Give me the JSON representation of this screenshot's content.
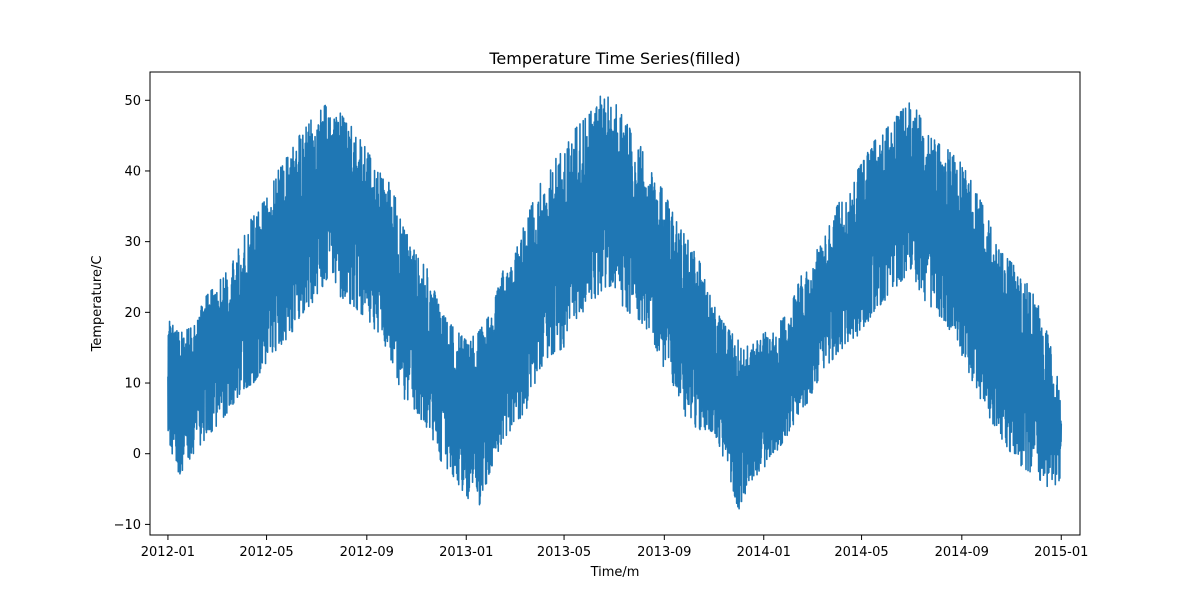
{
  "chart_data": {
    "type": "line",
    "title": "Temperature Time Series(filled)",
    "xlabel": "Time/m",
    "ylabel": "Temperature/C",
    "xlim": [
      "2011-12-10",
      "2015-01-24"
    ],
    "ylim": [
      -11.5,
      54
    ],
    "grid": false,
    "line_color": "#1f77b4",
    "x_ticks": [
      "2012-01-01",
      "2012-05-01",
      "2012-09-01",
      "2013-01-01",
      "2013-05-01",
      "2013-09-01",
      "2014-01-01",
      "2014-05-01",
      "2014-09-01",
      "2015-01-01"
    ],
    "x_tick_labels": [
      "2012-01",
      "2012-05",
      "2012-09",
      "2013-01",
      "2013-05",
      "2013-09",
      "2014-01",
      "2014-05",
      "2014-09",
      "2015-01"
    ],
    "y_ticks": [
      -10,
      0,
      10,
      20,
      30,
      40,
      50
    ],
    "y_tick_labels": [
      "−10",
      "0",
      "10",
      "20",
      "30",
      "40",
      "50"
    ],
    "series": [
      {
        "x": [
          "2012-01-01",
          "2012-01-15",
          "2012-02-01",
          "2012-02-15",
          "2012-03-01",
          "2012-03-15",
          "2012-04-01",
          "2012-04-15",
          "2012-05-01",
          "2012-05-15",
          "2012-06-01",
          "2012-06-15",
          "2012-07-01",
          "2012-07-15",
          "2012-08-01",
          "2012-08-15",
          "2012-09-01",
          "2012-09-15",
          "2012-10-01",
          "2012-10-15",
          "2012-11-01",
          "2012-11-15",
          "2012-12-01",
          "2012-12-15",
          "2013-01-01",
          "2013-01-15",
          "2013-02-01",
          "2013-02-15",
          "2013-03-01",
          "2013-03-15",
          "2013-04-01",
          "2013-04-15",
          "2013-05-01",
          "2013-05-15",
          "2013-06-01",
          "2013-06-15",
          "2013-07-01",
          "2013-07-15",
          "2013-08-01",
          "2013-08-15",
          "2013-09-01",
          "2013-09-15",
          "2013-10-01",
          "2013-10-15",
          "2013-11-01",
          "2013-11-15",
          "2013-12-01",
          "2013-12-15",
          "2014-01-01",
          "2014-01-15",
          "2014-02-01",
          "2014-02-15",
          "2014-03-01",
          "2014-03-15",
          "2014-04-01",
          "2014-04-15",
          "2014-05-01",
          "2014-05-15",
          "2014-06-01",
          "2014-06-15",
          "2014-07-01",
          "2014-07-15",
          "2014-08-01",
          "2014-08-15",
          "2014-09-01",
          "2014-09-15",
          "2014-10-01",
          "2014-10-15",
          "2014-11-01",
          "2014-11-15",
          "2014-12-01",
          "2014-12-15",
          "2015-01-01"
        ],
        "y_max": [
          19,
          17,
          18,
          22,
          24,
          26,
          30,
          34,
          36,
          40,
          43,
          46,
          48,
          50,
          48,
          46,
          43,
          40,
          38,
          33,
          28,
          26,
          20,
          18,
          16,
          17,
          20,
          26,
          28,
          33,
          38,
          41,
          43,
          46,
          48,
          51,
          50,
          47,
          44,
          40,
          37,
          33,
          30,
          27,
          21,
          18,
          16,
          15,
          17,
          18,
          20,
          25,
          27,
          31,
          35,
          38,
          41,
          44,
          46,
          48,
          50,
          47,
          44,
          43,
          41,
          38,
          34,
          29,
          27,
          25,
          22,
          17,
          9
        ],
        "y_min": [
          1,
          -3,
          0,
          2,
          4,
          6,
          9,
          10,
          13,
          15,
          17,
          20,
          22,
          25,
          22,
          21,
          19,
          17,
          13,
          8,
          6,
          3,
          -1,
          -3,
          -6,
          -8,
          -2,
          2,
          4,
          6,
          12,
          14,
          15,
          19,
          21,
          23,
          24,
          20,
          19,
          17,
          12,
          9,
          4,
          2,
          2,
          -1,
          -8,
          -4,
          -2,
          0,
          3,
          6,
          8,
          12,
          14,
          16,
          17,
          20,
          22,
          24,
          26,
          22,
          20,
          18,
          14,
          10,
          6,
          3,
          0,
          -2,
          -3,
          -5,
          -4
        ]
      }
    ]
  }
}
